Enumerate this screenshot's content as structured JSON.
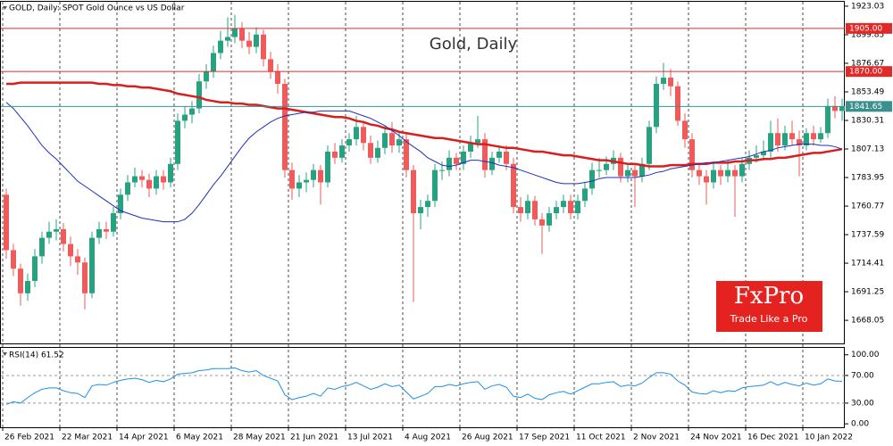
{
  "chart_data": [
    {
      "type": "candlestick",
      "title": "GOLD, Daily:  SPOT Gold Ounce vs US Dollar",
      "annotation": "Gold, Daily",
      "up_color": "#27a17f",
      "down_color": "#ef5a5a",
      "ylim": [
        1649.3,
        1926.6
      ],
      "yticks": [
        1923.03,
        1899.85,
        1876.67,
        1853.49,
        1830.31,
        1807.13,
        1783.95,
        1760.77,
        1737.59,
        1714.41,
        1691.25,
        1668.05
      ],
      "levels": [
        {
          "value": 1905,
          "label": "1905.00",
          "color": "#e02a2a"
        },
        {
          "value": 1870,
          "label": "1870.00",
          "color": "#e02a2a"
        },
        {
          "value": 1841.65,
          "label": "1841.65",
          "color": "#3a8f8f"
        }
      ],
      "categories": [
        "26 Feb 2021",
        null,
        null,
        null,
        null,
        null,
        null,
        null,
        "22 Mar 2021",
        null,
        null,
        null,
        null,
        null,
        null,
        null,
        "14 Apr 2021",
        null,
        null,
        null,
        null,
        null,
        null,
        null,
        "6 May 2021",
        null,
        null,
        null,
        null,
        null,
        null,
        null,
        "28 May 2021",
        null,
        null,
        null,
        null,
        null,
        null,
        null,
        "21 Jun 2021",
        null,
        null,
        null,
        null,
        null,
        null,
        null,
        "13 Jul 2021",
        null,
        null,
        null,
        null,
        null,
        null,
        null,
        "4 Aug 2021",
        null,
        null,
        null,
        null,
        null,
        null,
        null,
        "26 Aug 2021",
        null,
        null,
        null,
        null,
        null,
        null,
        null,
        "17 Sep 2021",
        null,
        null,
        null,
        null,
        null,
        null,
        null,
        "11 Oct 2021",
        null,
        null,
        null,
        null,
        null,
        null,
        null,
        "2 Nov 2021",
        null,
        null,
        null,
        null,
        null,
        null,
        null,
        "24 Nov 2021",
        null,
        null,
        null,
        null,
        null,
        null,
        null,
        "16 Dec 2021",
        null,
        null,
        null,
        null,
        null,
        null,
        null,
        "10 Jan 2022",
        null,
        null,
        null,
        null,
        null
      ],
      "open": [
        1770,
        1725,
        1710,
        1690,
        1700,
        1720,
        1735,
        1740,
        1742,
        1730,
        1720,
        1715,
        1690,
        1735,
        1742,
        1740,
        1755,
        1770,
        1780,
        1785,
        1782,
        1775,
        1785,
        1780,
        1795,
        1830,
        1835,
        1840,
        1862,
        1870,
        1885,
        1895,
        1898,
        1905,
        1895,
        1890,
        1900,
        1880,
        1870,
        1860,
        1790,
        1775,
        1780,
        1782,
        1790,
        1780,
        1805,
        1800,
        1810,
        1815,
        1825,
        1812,
        1800,
        1808,
        1820,
        1810,
        1815,
        1790,
        1755,
        1760,
        1765,
        1790,
        1790,
        1800,
        1795,
        1805,
        1812,
        1815,
        1790,
        1800,
        1805,
        1795,
        1760,
        1755,
        1765,
        1750,
        1745,
        1755,
        1760,
        1765,
        1755,
        1765,
        1775,
        1790,
        1790,
        1795,
        1800,
        1785,
        1790,
        1785,
        1795,
        1825,
        1860,
        1865,
        1858,
        1830,
        1815,
        1790,
        1785,
        1780,
        1790,
        1785,
        1790,
        1785,
        1795,
        1800,
        1802,
        1805,
        1820,
        1810,
        1820,
        1815,
        1810,
        1820,
        1815,
        1820,
        1842,
        1838
      ],
      "high": [
        1775,
        1730,
        1714,
        1706,
        1726,
        1740,
        1748,
        1750,
        1747,
        1736,
        1726,
        1719,
        1740,
        1748,
        1748,
        1760,
        1775,
        1786,
        1792,
        1790,
        1787,
        1790,
        1790,
        1800,
        1836,
        1842,
        1846,
        1868,
        1876,
        1891,
        1903,
        1914,
        1916,
        1910,
        1902,
        1906,
        1904,
        1886,
        1876,
        1864,
        1796,
        1786,
        1788,
        1795,
        1794,
        1810,
        1812,
        1815,
        1820,
        1834,
        1830,
        1818,
        1814,
        1826,
        1829,
        1820,
        1819,
        1794,
        1766,
        1770,
        1795,
        1797,
        1806,
        1804,
        1810,
        1818,
        1834,
        1820,
        1805,
        1810,
        1810,
        1800,
        1768,
        1770,
        1769,
        1755,
        1760,
        1765,
        1770,
        1770,
        1770,
        1780,
        1796,
        1800,
        1801,
        1806,
        1804,
        1795,
        1794,
        1800,
        1830,
        1866,
        1877,
        1872,
        1862,
        1836,
        1820,
        1795,
        1790,
        1796,
        1794,
        1798,
        1794,
        1800,
        1806,
        1810,
        1814,
        1830,
        1832,
        1826,
        1830,
        1822,
        1824,
        1826,
        1825,
        1848,
        1850,
        1848
      ],
      "low": [
        1718,
        1704,
        1680,
        1684,
        1695,
        1714,
        1730,
        1733,
        1724,
        1712,
        1705,
        1677,
        1686,
        1730,
        1734,
        1736,
        1750,
        1765,
        1776,
        1776,
        1768,
        1770,
        1774,
        1776,
        1790,
        1824,
        1828,
        1836,
        1856,
        1865,
        1880,
        1890,
        1893,
        1889,
        1884,
        1885,
        1874,
        1864,
        1852,
        1784,
        1766,
        1768,
        1772,
        1776,
        1762,
        1776,
        1795,
        1796,
        1805,
        1810,
        1806,
        1795,
        1796,
        1803,
        1804,
        1804,
        1784,
        1683,
        1742,
        1752,
        1760,
        1782,
        1785,
        1790,
        1790,
        1800,
        1808,
        1784,
        1786,
        1796,
        1790,
        1755,
        1748,
        1750,
        1745,
        1722,
        1740,
        1750,
        1755,
        1750,
        1750,
        1760,
        1770,
        1784,
        1786,
        1790,
        1780,
        1780,
        1760,
        1780,
        1790,
        1820,
        1855,
        1850,
        1826,
        1808,
        1784,
        1778,
        1762,
        1775,
        1778,
        1780,
        1752,
        1780,
        1790,
        1796,
        1798,
        1800,
        1805,
        1806,
        1810,
        1785,
        1806,
        1810,
        1812,
        1816,
        1832,
        1830
      ],
      "close": [
        1725,
        1710,
        1690,
        1700,
        1720,
        1735,
        1740,
        1742,
        1730,
        1720,
        1715,
        1690,
        1735,
        1742,
        1740,
        1755,
        1770,
        1780,
        1785,
        1782,
        1775,
        1785,
        1780,
        1795,
        1830,
        1835,
        1840,
        1862,
        1870,
        1885,
        1895,
        1898,
        1905,
        1895,
        1890,
        1900,
        1880,
        1870,
        1860,
        1790,
        1775,
        1780,
        1782,
        1790,
        1780,
        1805,
        1800,
        1810,
        1815,
        1825,
        1812,
        1800,
        1808,
        1820,
        1810,
        1815,
        1790,
        1755,
        1760,
        1765,
        1790,
        1790,
        1800,
        1795,
        1805,
        1812,
        1815,
        1790,
        1800,
        1805,
        1795,
        1760,
        1755,
        1765,
        1750,
        1745,
        1755,
        1760,
        1765,
        1755,
        1765,
        1775,
        1790,
        1790,
        1795,
        1800,
        1785,
        1790,
        1785,
        1795,
        1825,
        1860,
        1865,
        1858,
        1830,
        1815,
        1790,
        1785,
        1780,
        1790,
        1785,
        1790,
        1785,
        1795,
        1800,
        1802,
        1805,
        1820,
        1810,
        1820,
        1815,
        1810,
        1820,
        1815,
        1820,
        1842,
        1838,
        1841.65
      ],
      "series": [
        {
          "color": "#d81e1e",
          "width": 2.5,
          "values": [
            1860,
            1860,
            1861,
            1861,
            1861,
            1861,
            1861,
            1861,
            1861,
            1861,
            1861,
            1861,
            1861,
            1860,
            1860,
            1859,
            1859,
            1858,
            1858,
            1857,
            1857,
            1856,
            1855,
            1854,
            1852,
            1851,
            1850,
            1849,
            1847,
            1846,
            1845,
            1845,
            1844,
            1844,
            1843,
            1843,
            1842,
            1841,
            1840,
            1840,
            1839,
            1838,
            1837,
            1836,
            1835,
            1834,
            1833,
            1833,
            1832,
            1830,
            1829,
            1827,
            1826,
            1824,
            1823,
            1821,
            1820,
            1819,
            1818,
            1817,
            1816,
            1816,
            1815,
            1814,
            1813,
            1812,
            1811,
            1811,
            1810,
            1809,
            1808,
            1808,
            1807,
            1806,
            1805,
            1805,
            1804,
            1803,
            1802,
            1802,
            1801,
            1800,
            1799,
            1798,
            1798,
            1797,
            1796,
            1795,
            1795,
            1794,
            1793,
            1793,
            1793,
            1794,
            1794,
            1794,
            1795,
            1795,
            1795,
            1796,
            1796,
            1796,
            1797,
            1797,
            1798,
            1798,
            1799,
            1799,
            1800,
            1800,
            1801,
            1802,
            1803,
            1804,
            1804,
            1805,
            1806,
            1807
          ]
        },
        {
          "color": "#1f2fb8",
          "width": 1,
          "values": [
            1845,
            1840,
            1833,
            1826,
            1818,
            1810,
            1804,
            1799,
            1793,
            1787,
            1781,
            1777,
            1773,
            1769,
            1765,
            1761,
            1757,
            1755,
            1753,
            1751,
            1750,
            1749,
            1748,
            1748,
            1748,
            1750,
            1755,
            1762,
            1770,
            1778,
            1785,
            1793,
            1801,
            1809,
            1816,
            1821,
            1825,
            1829,
            1832,
            1834,
            1835,
            1836,
            1837,
            1837,
            1838,
            1838,
            1838,
            1838,
            1838,
            1836,
            1834,
            1832,
            1829,
            1826,
            1822,
            1818,
            1813,
            1809,
            1805,
            1800,
            1797,
            1794,
            1793,
            1794,
            1796,
            1798,
            1798,
            1797,
            1796,
            1794,
            1793,
            1792,
            1790,
            1788,
            1786,
            1784,
            1782,
            1780,
            1779,
            1779,
            1779,
            1780,
            1781,
            1783,
            1784,
            1784,
            1784,
            1784,
            1784,
            1785,
            1786,
            1788,
            1789,
            1791,
            1792,
            1793,
            1794,
            1795,
            1796,
            1796,
            1797,
            1798,
            1799,
            1800,
            1801,
            1803,
            1805,
            1806,
            1808,
            1809,
            1810,
            1811,
            1811,
            1811,
            1810,
            1810,
            1809,
            1807
          ]
        }
      ]
    },
    {
      "type": "line",
      "title": "RSI(14) 61.52",
      "color": "#1e8fe6",
      "ylim": [
        -5,
        110
      ],
      "yticks": [
        {
          "value": 100,
          "label": "100.00"
        },
        {
          "value": 70,
          "label": "70.00"
        },
        {
          "value": 30,
          "label": "30.00"
        },
        {
          "value": 0,
          "label": "0.00"
        }
      ],
      "dashed_levels": [
        70,
        30
      ],
      "values": [
        28,
        32,
        30,
        38,
        45,
        50,
        52,
        52,
        48,
        45,
        44,
        38,
        55,
        57,
        56,
        60,
        63,
        65,
        66,
        64,
        60,
        63,
        61,
        65,
        72,
        73,
        74,
        77,
        78,
        80,
        80,
        80,
        81,
        77,
        75,
        77,
        70,
        66,
        62,
        42,
        35,
        38,
        40,
        44,
        40,
        52,
        50,
        54,
        56,
        60,
        55,
        50,
        53,
        58,
        54,
        56,
        46,
        36,
        40,
        44,
        54,
        54,
        57,
        55,
        58,
        60,
        61,
        50,
        55,
        57,
        53,
        40,
        38,
        43,
        37,
        35,
        42,
        45,
        47,
        43,
        48,
        53,
        58,
        58,
        60,
        61,
        54,
        56,
        55,
        59,
        67,
        74,
        74,
        72,
        62,
        56,
        46,
        44,
        43,
        48,
        45,
        48,
        47,
        52,
        54,
        55,
        56,
        61,
        56,
        60,
        57,
        55,
        59,
        56,
        58,
        65,
        62,
        61.52
      ]
    }
  ],
  "logo": {
    "brand": "FxPro",
    "tagline": "Trade Like a Pro"
  }
}
